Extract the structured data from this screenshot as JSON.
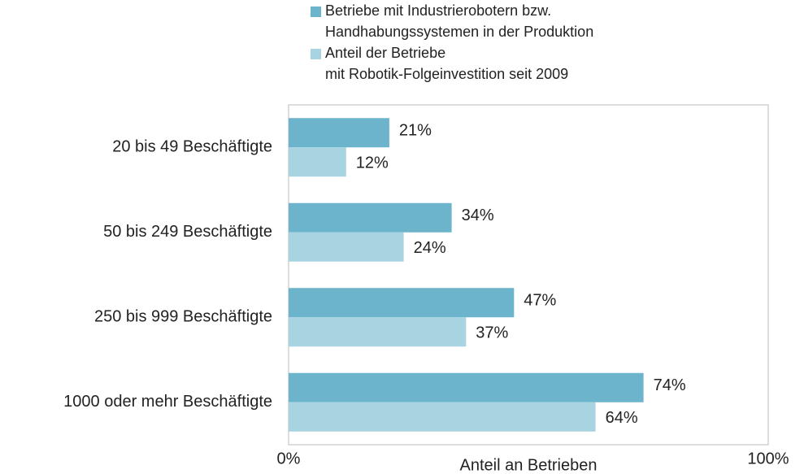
{
  "chart_data": {
    "type": "bar",
    "orientation": "horizontal",
    "x_label": "Anteil an Betrieben",
    "categories": [
      "20 bis 49 Beschäftigte",
      "50 bis 249 Beschäftigte",
      "250 bis 999 Beschäftigte",
      "1000 oder mehr Beschäftigte"
    ],
    "series": [
      {
        "name": "Betriebe mit Industrierobotern bzw.\nHandhabungssystemen in der Produktion",
        "color": "#6cb4cc",
        "values": [
          21,
          34,
          47,
          74
        ],
        "value_labels": [
          "21%",
          "34%",
          "47%",
          "74%"
        ]
      },
      {
        "name": "Anteil der Betriebe\nmit Robotik-Folgeinvestition seit 2009",
        "color": "#a8d4e2",
        "values": [
          12,
          24,
          37,
          64
        ],
        "value_labels": [
          "12%",
          "24%",
          "37%",
          "64%"
        ]
      }
    ],
    "xlim": [
      0,
      100
    ],
    "xticks": [
      {
        "value": 0,
        "label": "0%"
      },
      {
        "value": 100,
        "label": "100%"
      }
    ],
    "legend": "top"
  }
}
